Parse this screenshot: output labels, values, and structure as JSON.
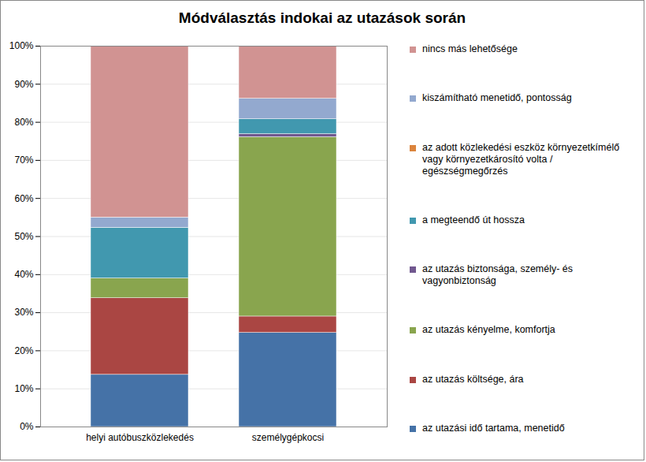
{
  "chart_data": {
    "type": "bar",
    "title": "Módválasztás indokai az utazások során",
    "stacked": true,
    "grid": true,
    "legend": "right",
    "categories": [
      "helyi autóbuszközlekedés",
      "személygépkocsi"
    ],
    "series": [
      {
        "name": "az utazási idő tartama, menetidő",
        "color": "#4572A7",
        "values": [
          13.7,
          24.7
        ]
      },
      {
        "name": "az utazás költsége, ára",
        "color": "#AA4643",
        "values": [
          20.1,
          4.3
        ]
      },
      {
        "name": "az utazás kényelme, komfortja",
        "color": "#89A54E",
        "values": [
          5.2,
          47.1
        ]
      },
      {
        "name": "az utazás biztonsága, személy- és vagyonbiztonság",
        "color": "#71588F",
        "values": [
          0,
          0.8
        ]
      },
      {
        "name": "a megteendő út hossza",
        "color": "#4198AF",
        "values": [
          13.3,
          3.9
        ]
      },
      {
        "name": "az adott közlekedési eszköz környezetkímélő vagy környezetkárosító volta / egészségmegőrzés",
        "color": "#DB843D",
        "values": [
          0,
          0
        ]
      },
      {
        "name": "kiszámítható menetidő, pontosság",
        "color": "#93A9CF",
        "values": [
          2.7,
          5.4
        ]
      },
      {
        "name": "nincs más lehetősége",
        "color": "#D19392",
        "values": [
          45,
          13.8
        ]
      }
    ],
    "ylim": [
      0,
      100
    ],
    "yticks": [
      {
        "value": 0,
        "label": "0%"
      },
      {
        "value": 10,
        "label": "10%"
      },
      {
        "value": 20,
        "label": "20%"
      },
      {
        "value": 30,
        "label": "30%"
      },
      {
        "value": 40,
        "label": "40%"
      },
      {
        "value": 50,
        "label": "50%"
      },
      {
        "value": 60,
        "label": "60%"
      },
      {
        "value": 70,
        "label": "70%"
      },
      {
        "value": 80,
        "label": "80%"
      },
      {
        "value": 90,
        "label": "90%"
      },
      {
        "value": 100,
        "label": "100%"
      }
    ]
  }
}
